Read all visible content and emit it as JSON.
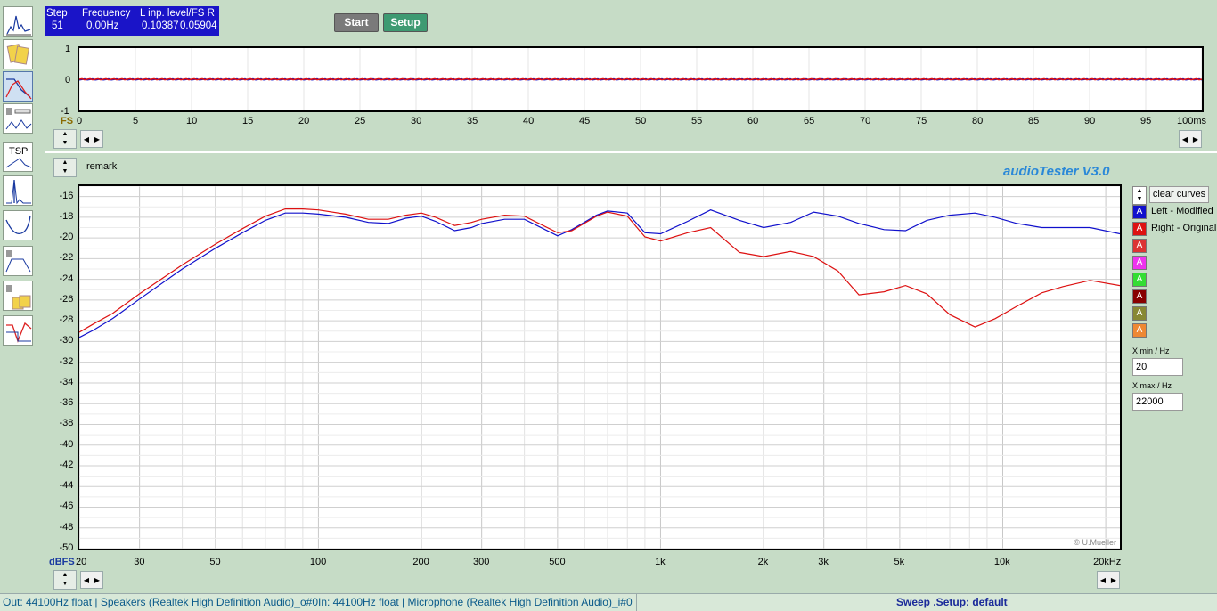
{
  "readout": {
    "step_label": "Step",
    "step_value": "51",
    "freq_label": "Frequency",
    "freq_value": "0.00Hz",
    "level_label": "L  inp. level/FS  R",
    "level_left": "0.10387",
    "level_right": "0.05904"
  },
  "buttons": {
    "start": "Start",
    "setup": "Setup"
  },
  "toolbar": {
    "tools": [
      {
        "name": "spectrum-tool",
        "icon": "spectrum-icon",
        "selected": false
      },
      {
        "name": "oscilloscope-tool",
        "icon": "scope-cards-icon",
        "selected": false
      },
      {
        "name": "frequency-response-tool",
        "icon": "freq-response-icon",
        "selected": true
      },
      {
        "name": "speaker-distortion-tool",
        "icon": "speaker-distortion-icon",
        "selected": false
      },
      {
        "name": "tsp-tool",
        "icon": "tsp-icon",
        "label": "TSP",
        "selected": false
      },
      {
        "name": "impulse-tool",
        "icon": "impulse-icon",
        "selected": false
      },
      {
        "name": "impedance-tool",
        "icon": "impedance-icon",
        "selected": false
      },
      {
        "name": "speaker-filter-tool",
        "icon": "speaker-filter-icon",
        "selected": false
      },
      {
        "name": "scope-speaker-tool",
        "icon": "scope-speaker-icon",
        "selected": false
      },
      {
        "name": "step-response-tool",
        "icon": "step-response-icon",
        "selected": false
      }
    ]
  },
  "time_plot": {
    "y_ticks": [
      "1",
      "0",
      "-1"
    ],
    "y_unit": "FS",
    "x_ticks": [
      "0",
      "5",
      "10",
      "15",
      "20",
      "25",
      "30",
      "35",
      "40",
      "45",
      "50",
      "55",
      "60",
      "65",
      "70",
      "75",
      "80",
      "85",
      "90",
      "95",
      "100ms"
    ]
  },
  "main_plot": {
    "remark": "remark",
    "brand": "audioTester  V3.0",
    "copyright": "© U.Mueller",
    "y_unit": "dBFS",
    "x_ticks": [
      "20",
      "30",
      "50",
      "100",
      "200",
      "300",
      "500",
      "1k",
      "2k",
      "3k",
      "5k",
      "10k",
      "20kHz"
    ]
  },
  "legend": {
    "clear_label": "clear curves",
    "entries": [
      {
        "label": "Left - Modified",
        "color": "#1010cc"
      },
      {
        "label": "Right - Original",
        "color": "#dd1111"
      },
      {
        "label": "",
        "color": "#dd3333"
      },
      {
        "label": "",
        "color": "#ee33ee"
      },
      {
        "label": "",
        "color": "#33dd33"
      },
      {
        "label": "",
        "color": "#880000"
      },
      {
        "label": "",
        "color": "#888833"
      },
      {
        "label": "",
        "color": "#ee8833"
      }
    ],
    "xmin_label": "X min / Hz",
    "xmin_value": "20",
    "xmax_label": "X max / Hz",
    "xmax_value": "22000"
  },
  "statusbar": {
    "out": "Out: 44100Hz float  | Speakers (Realtek High Definition Audio)_o#0",
    "in": "In: 44100Hz float  | Microphone (Realtek High Definition Audio)_i#0",
    "sweep": "Sweep .Setup:  default"
  },
  "chart_data": [
    {
      "type": "line",
      "title": "",
      "xlabel": "",
      "ylabel": "FS",
      "xlim": [
        0,
        100
      ],
      "ylim": [
        -1,
        1
      ],
      "series": [
        {
          "color": "#1010cc",
          "x": [
            0,
            100
          ],
          "y": [
            0,
            0
          ]
        },
        {
          "color": "#dd1111",
          "x": [
            0,
            100
          ],
          "y": [
            0,
            0
          ]
        }
      ]
    },
    {
      "type": "line",
      "title": "",
      "xlabel": "",
      "ylabel": "dBFS",
      "x_scale": "log",
      "xlim": [
        20,
        22000
      ],
      "ylim": [
        -50,
        -15
      ],
      "y_ticks": [
        -16,
        -18,
        -20,
        -22,
        -24,
        -26,
        -28,
        -30,
        -32,
        -34,
        -36,
        -38,
        -40,
        -42,
        -44,
        -46,
        -48,
        -50
      ],
      "grid": true,
      "series": [
        {
          "name": "Left - Modified",
          "color": "#1010cc",
          "x": [
            20,
            22,
            25,
            30,
            40,
            50,
            60,
            70,
            80,
            90,
            100,
            120,
            140,
            160,
            180,
            200,
            220,
            250,
            280,
            300,
            350,
            400,
            500,
            550,
            650,
            700,
            800,
            900,
            1000,
            1200,
            1400,
            1700,
            2000,
            2400,
            2800,
            3300,
            3800,
            4500,
            5200,
            6000,
            7000,
            8300,
            9500,
            11000,
            13000,
            15000,
            18000,
            22000
          ],
          "y": [
            -29.6,
            -28.9,
            -27.8,
            -25.9,
            -23.0,
            -21.0,
            -19.5,
            -18.3,
            -17.6,
            -17.6,
            -17.7,
            -18.0,
            -18.5,
            -18.6,
            -18.1,
            -17.9,
            -18.4,
            -19.3,
            -19.0,
            -18.6,
            -18.2,
            -18.2,
            -19.8,
            -19.2,
            -17.8,
            -17.4,
            -17.6,
            -19.5,
            -19.6,
            -18.4,
            -17.3,
            -18.3,
            -19.0,
            -18.5,
            -17.5,
            -17.9,
            -18.6,
            -19.2,
            -19.3,
            -18.3,
            -17.8,
            -17.6,
            -18.0,
            -18.6,
            -19.0,
            -19.0,
            -19.0,
            -19.6
          ]
        },
        {
          "name": "Right - Original",
          "color": "#dd1111",
          "x": [
            20,
            22,
            25,
            30,
            40,
            50,
            60,
            70,
            80,
            90,
            100,
            120,
            140,
            160,
            180,
            200,
            220,
            250,
            280,
            300,
            350,
            400,
            500,
            550,
            650,
            700,
            800,
            900,
            1000,
            1200,
            1400,
            1700,
            2000,
            2400,
            2800,
            3300,
            3800,
            4500,
            5200,
            6000,
            7000,
            8300,
            9500,
            11000,
            13000,
            15000,
            18000,
            22000
          ],
          "y": [
            -29.1,
            -28.3,
            -27.3,
            -25.4,
            -22.6,
            -20.6,
            -19.1,
            -17.9,
            -17.2,
            -17.2,
            -17.3,
            -17.7,
            -18.2,
            -18.2,
            -17.8,
            -17.6,
            -18.0,
            -18.8,
            -18.5,
            -18.2,
            -17.8,
            -17.9,
            -19.5,
            -19.3,
            -17.9,
            -17.5,
            -17.9,
            -19.9,
            -20.3,
            -19.5,
            -19.0,
            -21.4,
            -21.8,
            -21.3,
            -21.8,
            -23.2,
            -25.5,
            -25.2,
            -24.6,
            -25.4,
            -27.4,
            -28.6,
            -27.8,
            -26.6,
            -25.3,
            -24.7,
            -24.1,
            -24.6
          ]
        }
      ]
    }
  ]
}
